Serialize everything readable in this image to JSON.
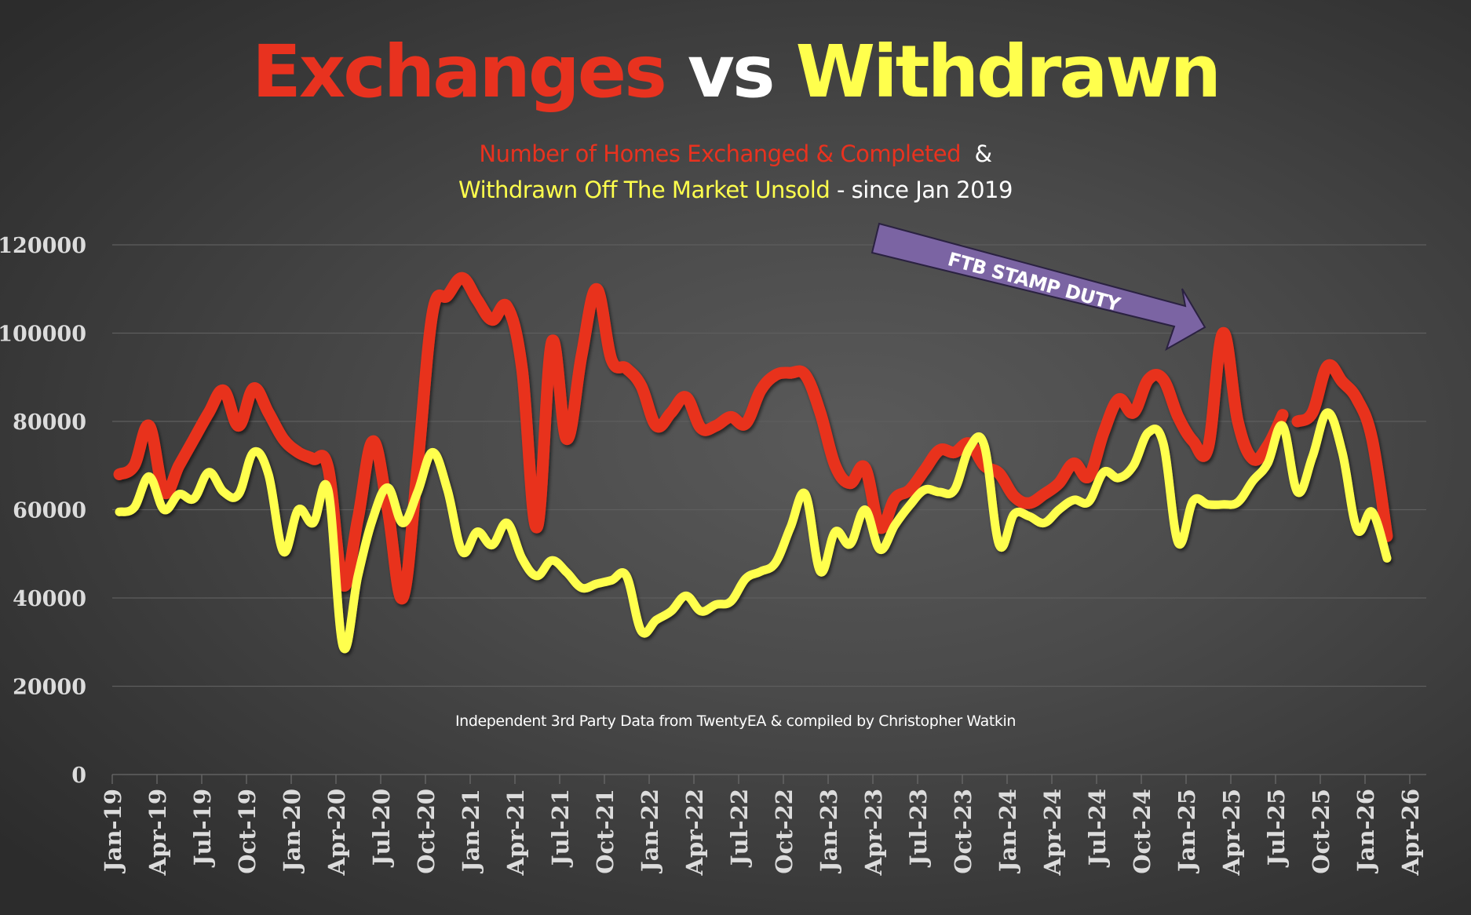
{
  "title": {
    "part1": "Exchanges",
    "part2": "vs",
    "part3": "Withdrawn"
  },
  "subtitle": {
    "line1_red": "Number of Homes Exchanged & Completed",
    "line1_white": "&",
    "line2_yellow": "Withdrawn Off The Market Unsold",
    "line2_white": "- since Jan 2019"
  },
  "footer": "Independent 3rd Party Data from TwentyEA  & compiled by Christopher Watkin",
  "colors": {
    "exchanges": "#e8321f",
    "withdrawn": "#ffff4d",
    "annotation": "#7b64a3",
    "grid": "#5e5e5e",
    "axis_text": "#dcdcdc"
  },
  "chart_data": {
    "type": "line",
    "title": "Exchanges vs Withdrawn",
    "subtitle": "Number of Homes Exchanged & Completed & Withdrawn Off The Market Unsold - since Jan 2019",
    "xlabel": "",
    "ylabel": "",
    "ylim": [
      0,
      120000
    ],
    "grid": true,
    "legend": "none",
    "y_ticks": [
      "0",
      "20000",
      "40000",
      "60000",
      "80000",
      "100000",
      "120000"
    ],
    "y_tick_values": [
      0,
      20000,
      40000,
      60000,
      80000,
      100000,
      120000
    ],
    "x_ticks": [
      "Jan-19",
      "Apr-19",
      "Jul-19",
      "Oct-19",
      "Jan-20",
      "Apr-20",
      "Jul-20",
      "Oct-20",
      "Jan-21",
      "Apr-21",
      "Jul-21",
      "Oct-21",
      "Jan-22",
      "Apr-22",
      "Jul-22",
      "Oct-22",
      "Jan-23",
      "Apr-23",
      "Jul-23",
      "Oct-23",
      "Jan-24",
      "Apr-24",
      "Jul-24",
      "Oct-24",
      "Jan-25",
      "Apr-25",
      "Jul-25",
      "Oct-25",
      "Jan-26",
      "Apr-26"
    ],
    "x_start": "Jan-19",
    "x_interval": "month",
    "series": [
      {
        "name": "Exchanges",
        "color": "#e8321f",
        "break_after_index": 78,
        "values": [
          68000,
          70000,
          79000,
          64000,
          70000,
          76000,
          82000,
          87000,
          79000,
          87500,
          82000,
          76000,
          73000,
          71500,
          69500,
          43000,
          58000,
          75500,
          60000,
          40000,
          70000,
          104500,
          108500,
          112500,
          107500,
          103000,
          106000,
          92000,
          56000,
          98000,
          76000,
          95000,
          110000,
          94000,
          92000,
          88000,
          79000,
          82000,
          85500,
          78500,
          79000,
          81000,
          79500,
          87000,
          90500,
          91000,
          90500,
          82000,
          70000,
          66000,
          69500,
          56000,
          62500,
          64500,
          69000,
          73500,
          73000,
          75000,
          70000,
          68200,
          63000,
          61500,
          63500,
          66000,
          70500,
          67500,
          77500,
          85000,
          82000,
          89500,
          89500,
          81000,
          75500,
          74000,
          100000,
          80000,
          71500,
          74500,
          81500,
          80000,
          82000,
          92500,
          89000,
          85000,
          76000,
          54000
        ]
      },
      {
        "name": "Withdrawn",
        "color": "#ffff4d",
        "values": [
          59500,
          60500,
          67500,
          60000,
          63500,
          62500,
          68500,
          64000,
          63500,
          73000,
          68000,
          50500,
          60000,
          57000,
          64500,
          29000,
          45000,
          58000,
          65000,
          57000,
          64000,
          73000,
          64500,
          50500,
          55000,
          52000,
          57000,
          49000,
          45000,
          48500,
          45800,
          42300,
          43200,
          44000,
          45000,
          32500,
          35000,
          37000,
          40500,
          37000,
          38500,
          39200,
          44400,
          46000,
          48000,
          56000,
          63500,
          46000,
          55000,
          52200,
          60000,
          51000,
          56500,
          61000,
          64500,
          64000,
          64500,
          74000,
          74500,
          52000,
          59000,
          58500,
          57000,
          60000,
          62200,
          61800,
          68500,
          67200,
          70000,
          77500,
          75000,
          52500,
          62000,
          61200,
          61200,
          61700,
          66500,
          70500,
          79000,
          64000,
          72000,
          82000,
          73000,
          55500,
          59500,
          49000
        ]
      }
    ],
    "annotations": [
      {
        "text": "FTB STAMP DUTY",
        "type": "arrow",
        "points_to": "Mar-25"
      }
    ]
  }
}
